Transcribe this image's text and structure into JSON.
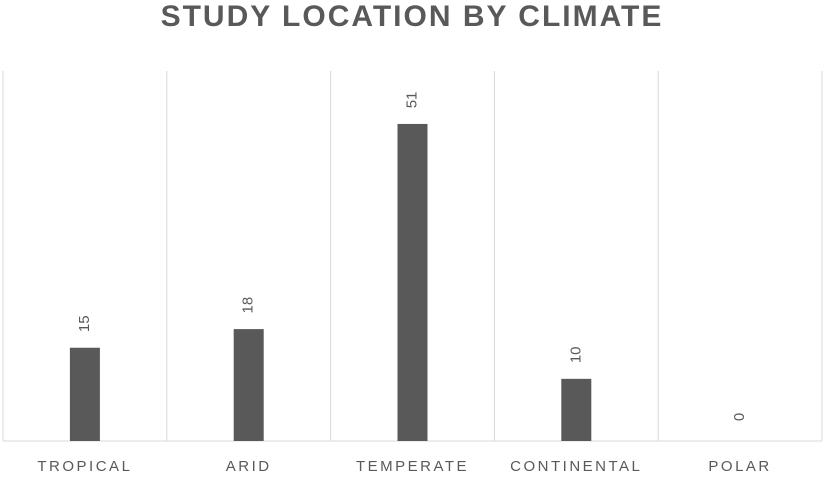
{
  "chart_data": {
    "type": "bar",
    "title": "STUDY LOCATION BY CLIMATE",
    "categories": [
      "TROPICAL",
      "ARID",
      "TEMPERATE",
      "CONTINENTAL",
      "POLAR"
    ],
    "values": [
      15,
      18,
      51,
      10,
      0
    ],
    "color": "#595959",
    "grid": true
  }
}
